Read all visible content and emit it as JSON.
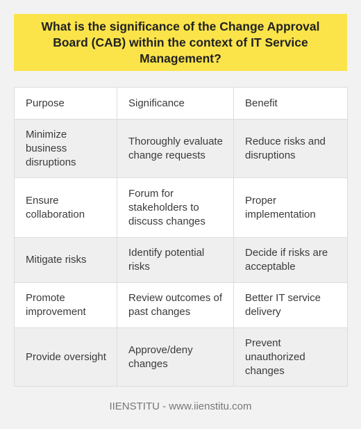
{
  "title": "What is the significance of the Change Approval Board (CAB) within the context of IT Service Management?",
  "table": {
    "headers": [
      "Purpose",
      "Significance",
      "Benefit"
    ],
    "rows": [
      [
        "Minimize business disruptions",
        "Thoroughly evaluate change requests",
        "Reduce risks and disruptions"
      ],
      [
        "Ensure collaboration",
        "Forum for stakeholders to discuss changes",
        "Proper implementation"
      ],
      [
        "Mitigate risks",
        "Identify potential risks",
        "Decide if risks are acceptable"
      ],
      [
        "Promote improvement",
        "Review outcomes of past changes",
        "Better IT service delivery"
      ],
      [
        "Provide oversight",
        "Approve/deny changes",
        "Prevent unauthorized changes"
      ]
    ]
  },
  "footer": "IIENSTITU - www.iienstitu.com",
  "colors": {
    "title_background": "#fbe44a",
    "page_background": "#f2f2f2"
  }
}
